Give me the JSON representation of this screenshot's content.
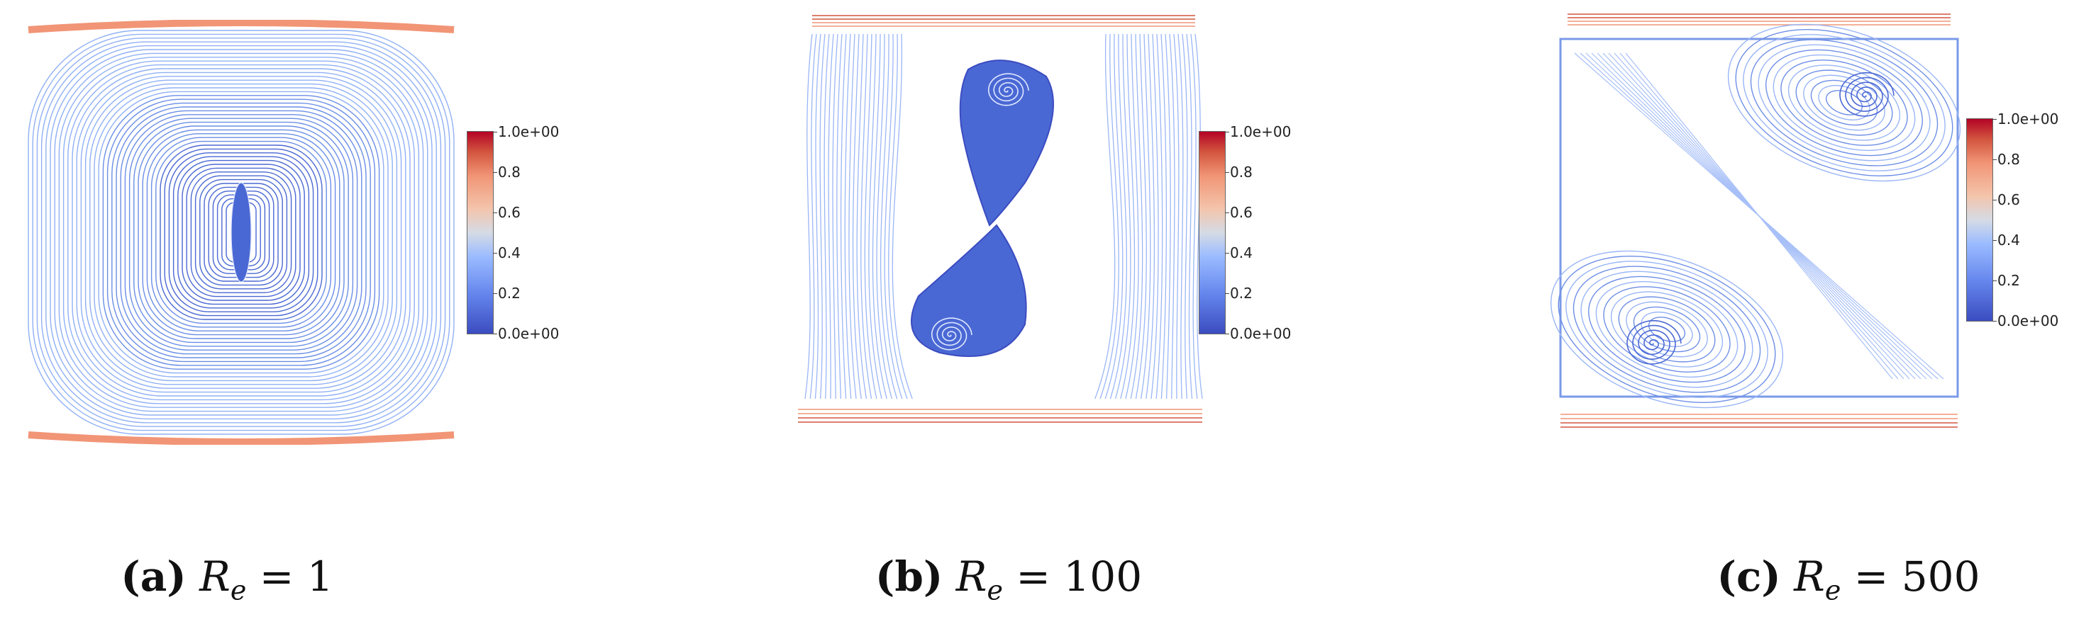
{
  "colorbar": {
    "ticks": [
      "1.0e+00",
      "0.8",
      "0.6",
      "0.4",
      "0.2",
      "0.0e+00"
    ],
    "colors": [
      "#3b4cc0",
      "#6687ed",
      "#9abbff",
      "#d5dbe5",
      "#f4c4ab",
      "#f19576",
      "#d2553f",
      "#b40426"
    ]
  },
  "panels": [
    {
      "label": "(a)",
      "var": "R",
      "sub": "e",
      "eq": " = 1"
    },
    {
      "label": "(b)",
      "var": "R",
      "sub": "e",
      "eq": " = 100"
    },
    {
      "label": "(c)",
      "var": "R",
      "sub": "e",
      "eq": " = 500"
    }
  ]
}
